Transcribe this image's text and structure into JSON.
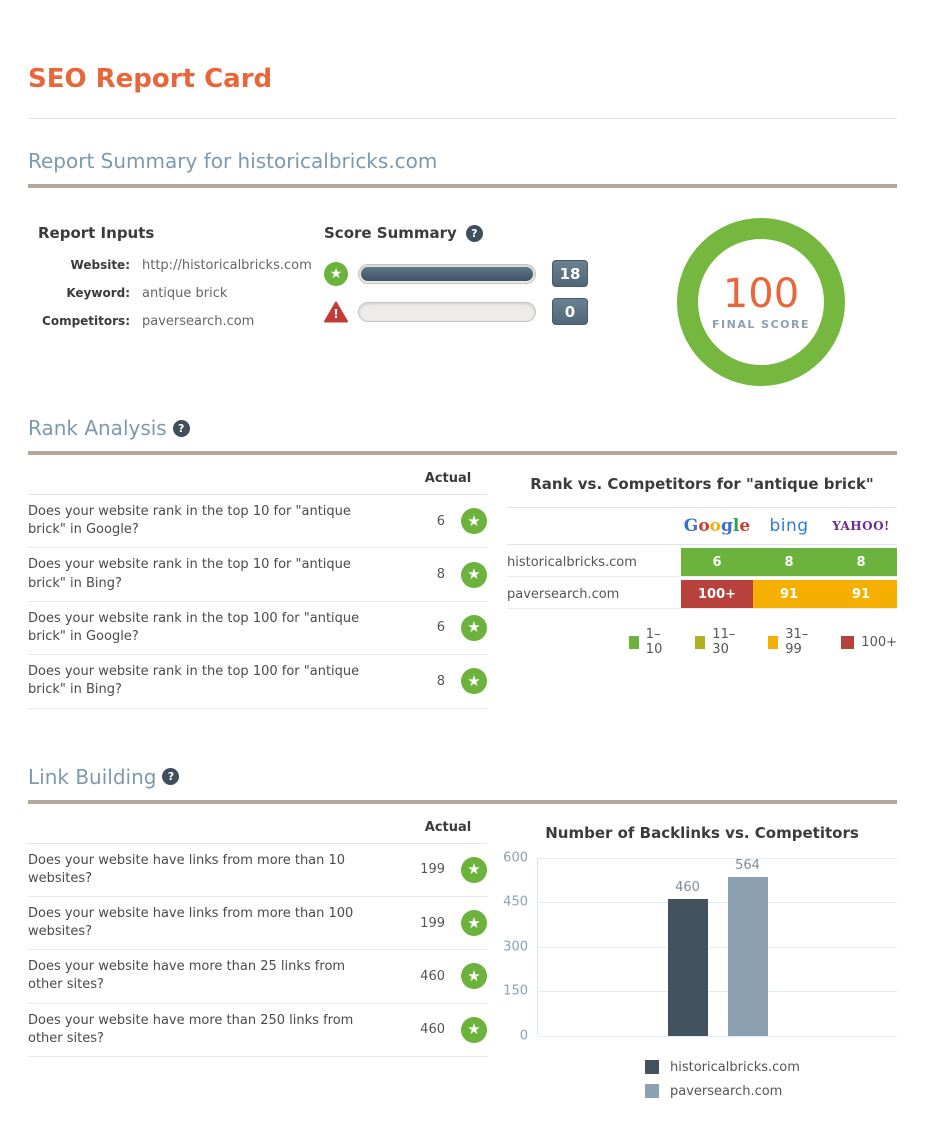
{
  "page": {
    "title": "SEO Report Card"
  },
  "icons": {
    "star_glyph": "★",
    "help_glyph": "?"
  },
  "summary": {
    "heading": "Report Summary for historicalbricks.com",
    "inputs": {
      "heading": "Report Inputs",
      "rows": [
        {
          "label": "Website:",
          "value": "http://historicalbricks.com"
        },
        {
          "label": "Keyword:",
          "value": "antique brick"
        },
        {
          "label": "Competitors:",
          "value": "paversearch.com"
        }
      ]
    },
    "score_summary": {
      "heading": "Score Summary",
      "rows": [
        {
          "icon": "star",
          "value": "18",
          "fill_percent": 100
        },
        {
          "icon": "warning",
          "value": "0",
          "fill_percent": 0
        }
      ]
    },
    "final_score": {
      "value": "100",
      "label": "FINAL SCORE",
      "ring_color": "#76b83f",
      "value_color": "#e8663a"
    }
  },
  "rank_analysis": {
    "heading": "Rank Analysis",
    "column_header": "Actual",
    "rows": [
      {
        "question": "Does your website rank in the top 10 for \"antique brick\" in Google?",
        "actual": "6",
        "status": "pass"
      },
      {
        "question": "Does your website rank in the top 10 for \"antique brick\" in Bing?",
        "actual": "8",
        "status": "pass"
      },
      {
        "question": "Does your website rank in the top 100 for \"antique brick\" in Google?",
        "actual": "6",
        "status": "pass"
      },
      {
        "question": "Does your website rank in the top 100 for \"antique brick\" in Bing?",
        "actual": "8",
        "status": "pass"
      }
    ],
    "competitors": {
      "title": "Rank vs. Competitors for \"antique brick\"",
      "engines": [
        "Google",
        "bing",
        "YAHOO!"
      ],
      "google_letter_colors": [
        "#3b6fd0",
        "#d5382e",
        "#efb211",
        "#3b6fd0",
        "#32a04c",
        "#d5382e"
      ],
      "bing_color": "#2f7cd6",
      "yahoo_color": "#6e2a8e",
      "rows": [
        {
          "site": "historicalbricks.com",
          "cells": [
            {
              "text": "6",
              "level": "green"
            },
            {
              "text": "8",
              "level": "green"
            },
            {
              "text": "8",
              "level": "green"
            }
          ]
        },
        {
          "site": "paversearch.com",
          "cells": [
            {
              "text": "100+",
              "level": "red"
            },
            {
              "text": "91",
              "level": "amber"
            },
            {
              "text": "91",
              "level": "amber"
            }
          ]
        }
      ],
      "legend": [
        {
          "label": "1–10",
          "level": "green",
          "color": "#6cb33e"
        },
        {
          "label": "11–30",
          "level": "olive",
          "color": "#b0af20"
        },
        {
          "label": "31–99",
          "level": "amber",
          "color": "#f5af00"
        },
        {
          "label": "100+",
          "level": "red",
          "color": "#b9413c"
        }
      ]
    }
  },
  "link_building": {
    "heading": "Link Building",
    "column_header": "Actual",
    "rows": [
      {
        "question": "Does your website have links from more than 10 websites?",
        "actual": "199",
        "status": "pass"
      },
      {
        "question": "Does your website have links from more than 100 websites?",
        "actual": "199",
        "status": "pass"
      },
      {
        "question": "Does your website have more than 25 links from other sites?",
        "actual": "460",
        "status": "pass"
      },
      {
        "question": "Does your website have more than 250 links from other sites?",
        "actual": "460",
        "status": "pass"
      }
    ]
  },
  "chart_data": {
    "type": "bar",
    "title": "Number of Backlinks vs. Competitors",
    "categories": [
      "historicalbricks.com",
      "paversearch.com"
    ],
    "series": [
      {
        "name": "historicalbricks.com",
        "value": 460,
        "label": "460",
        "color": "#42525e"
      },
      {
        "name": "paversearch.com",
        "value": 564,
        "label": "564",
        "color": "#8ba1b1"
      }
    ],
    "xlabel": "",
    "ylabel": "",
    "ylim": [
      0,
      600
    ],
    "yticks": [
      "600",
      "450",
      "300",
      "150",
      "0"
    ],
    "grid": true,
    "legend_position": "bottom"
  }
}
